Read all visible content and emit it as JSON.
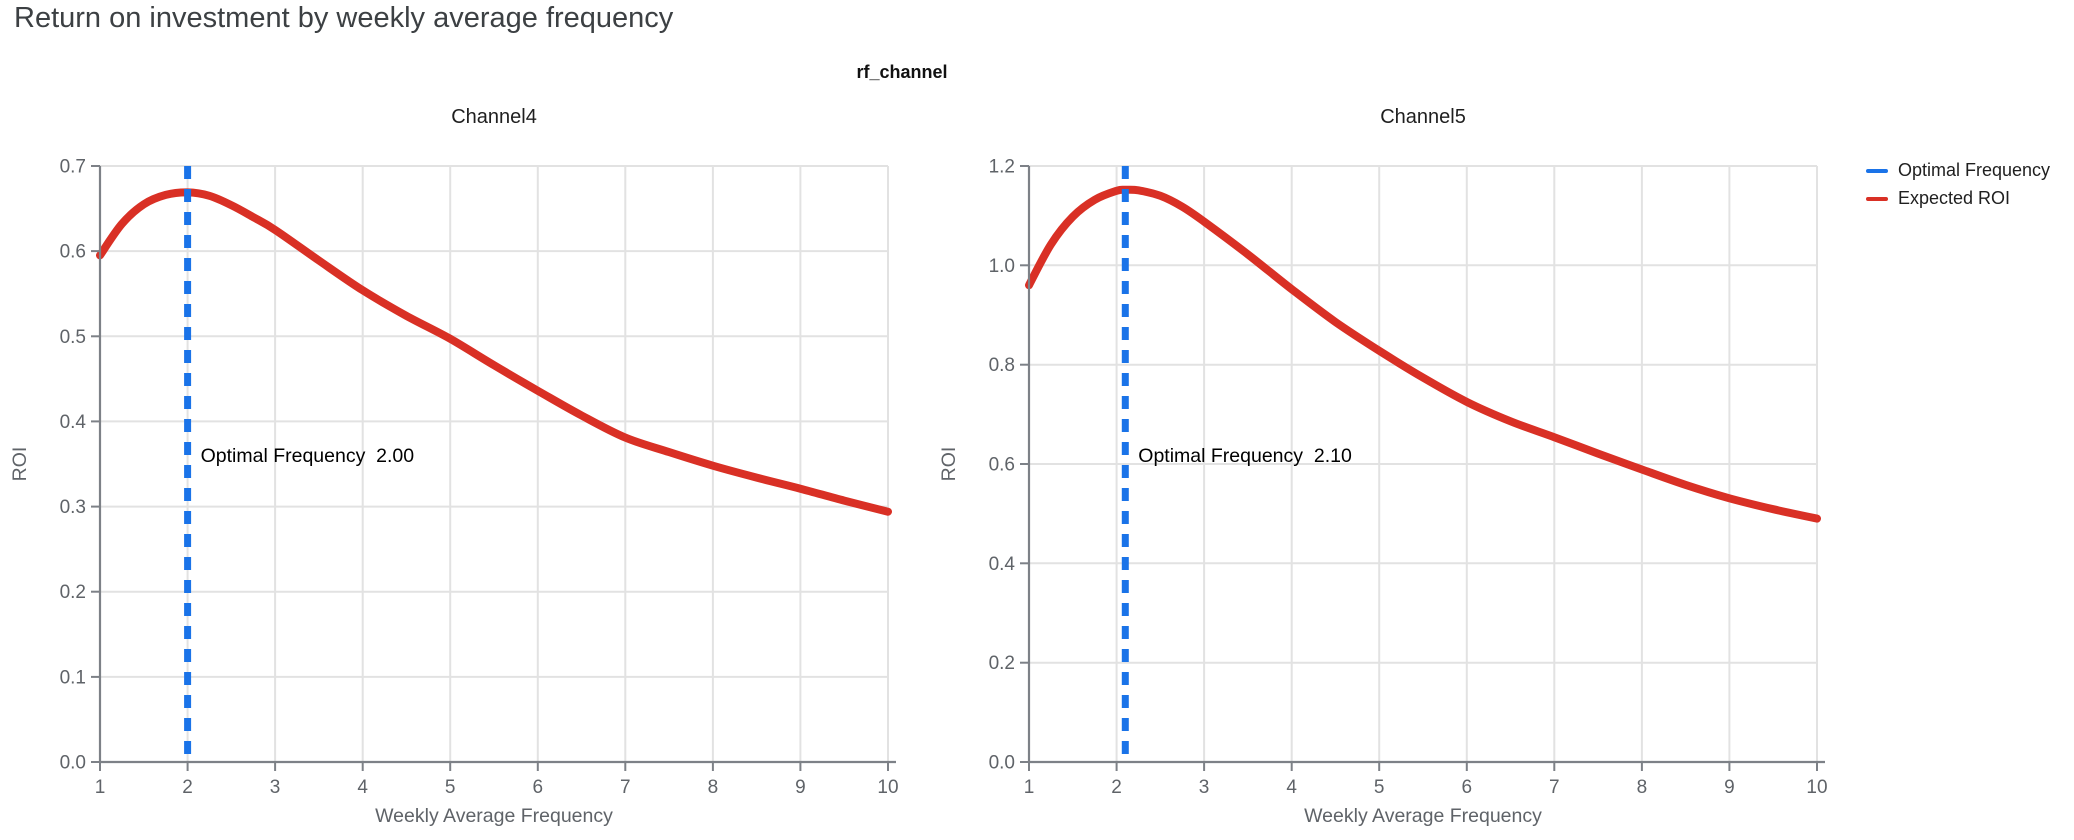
{
  "page": {
    "title": "Return on investment by weekly average frequency"
  },
  "figure": {
    "suptitle": "rf_channel"
  },
  "legend": {
    "items": [
      {
        "label": "Optimal Frequency",
        "color": "#1a73e8"
      },
      {
        "label": "Expected ROI",
        "color": "#d93025"
      }
    ]
  },
  "colors": {
    "curve": "#d93025",
    "optimal": "#1a73e8",
    "grid": "#e2e2e2",
    "axis": "#7d8187",
    "tick_label": "#5f6368",
    "chart_title": "#1f1f1f",
    "annotation": "#000000",
    "page_title": "#3c4043"
  },
  "chart_data": [
    {
      "type": "line",
      "title": "Channel4",
      "xlabel": "Weekly Average Frequency",
      "ylabel": "ROI",
      "xlim": [
        1,
        10
      ],
      "ylim": [
        0.0,
        0.7
      ],
      "xticks": [
        1,
        2,
        3,
        4,
        5,
        6,
        7,
        8,
        9,
        10
      ],
      "yticks": [
        0.0,
        0.1,
        0.2,
        0.3,
        0.4,
        0.5,
        0.6,
        0.7
      ],
      "grid": true,
      "optimal_frequency": 2.0,
      "optimal_frequency_label": "2.00",
      "annotation": "Optimal Frequency  2.00",
      "series": [
        {
          "name": "Expected ROI",
          "x": [
            1,
            1.25,
            1.5,
            1.75,
            2,
            2.25,
            2.5,
            2.75,
            3,
            3.5,
            4,
            4.5,
            5,
            5.5,
            6,
            6.5,
            7,
            7.5,
            8,
            8.5,
            9,
            9.5,
            10
          ],
          "y": [
            0.595,
            0.632,
            0.655,
            0.666,
            0.669,
            0.665,
            0.654,
            0.64,
            0.625,
            0.589,
            0.554,
            0.524,
            0.497,
            0.466,
            0.436,
            0.407,
            0.381,
            0.364,
            0.348,
            0.334,
            0.321,
            0.307,
            0.294
          ]
        }
      ]
    },
    {
      "type": "line",
      "title": "Channel5",
      "xlabel": "Weekly Average Frequency",
      "ylabel": "ROI",
      "xlim": [
        1,
        10
      ],
      "ylim": [
        0.0,
        1.2
      ],
      "xticks": [
        1,
        2,
        3,
        4,
        5,
        6,
        7,
        8,
        9,
        10
      ],
      "yticks": [
        0.0,
        0.2,
        0.4,
        0.6,
        0.8,
        1.0,
        1.2
      ],
      "grid": true,
      "optimal_frequency": 2.1,
      "optimal_frequency_label": "2.10",
      "annotation": "Optimal Frequency  2.10",
      "series": [
        {
          "name": "Expected ROI",
          "x": [
            1,
            1.25,
            1.5,
            1.75,
            2,
            2.1,
            2.25,
            2.5,
            2.75,
            3,
            3.5,
            4,
            4.5,
            5,
            5.5,
            6,
            6.5,
            7,
            7.5,
            8,
            8.5,
            9,
            9.5,
            10
          ],
          "y": [
            0.96,
            1.042,
            1.098,
            1.132,
            1.15,
            1.152,
            1.151,
            1.14,
            1.118,
            1.088,
            1.022,
            0.952,
            0.886,
            0.828,
            0.774,
            0.725,
            0.686,
            0.654,
            0.621,
            0.589,
            0.558,
            0.531,
            0.509,
            0.49
          ]
        }
      ]
    }
  ]
}
